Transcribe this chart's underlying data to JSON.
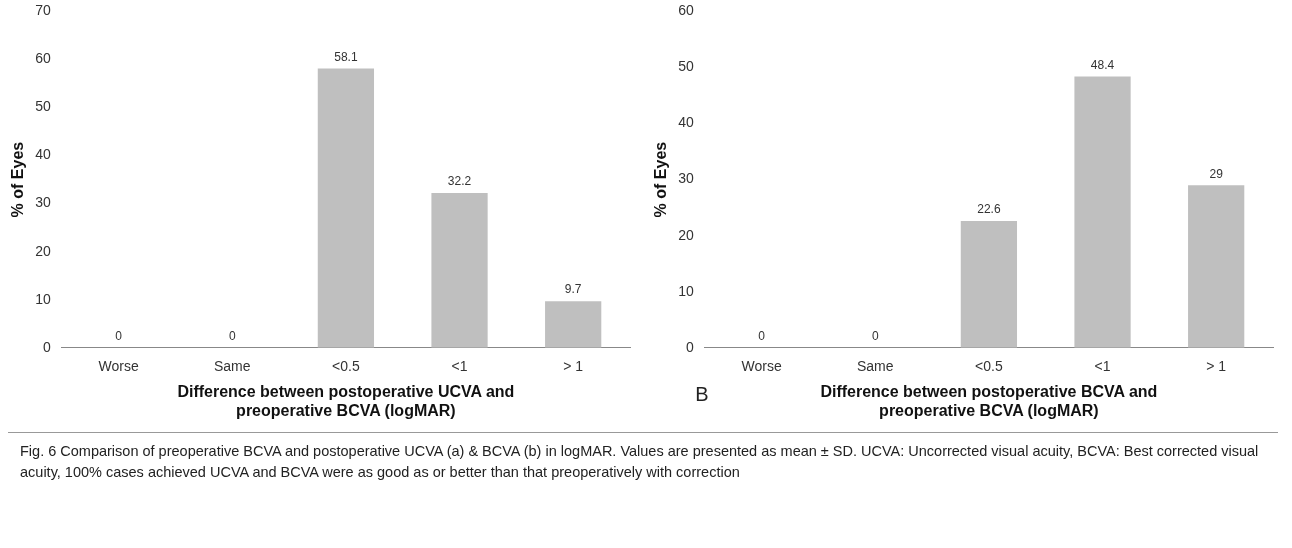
{
  "chart_data": [
    {
      "type": "bar",
      "categories": [
        "Worse",
        "Same",
        "<0.5",
        "<1",
        "> 1"
      ],
      "values": [
        0,
        0,
        58.1,
        32.2,
        9.7
      ],
      "color": "#bfbfbf",
      "ylim": [
        0,
        70
      ],
      "yticks": [
        0,
        10,
        20,
        30,
        40,
        50,
        60,
        70
      ],
      "grid": false,
      "data_labels": true,
      "ylabel": "% of Eyes",
      "xlabel": "Difference between postoperative UCVA and\npreoperative BCVA (logMAR)",
      "annotations": [
        "Fig. 6 Comparison of preoperative BCVA and postoperative UCVA (a) & BCVA (b) in logMAR. Values are presented as mean ± SD. UCVA: Uncorrected visual acuity, BCVA: Best corrected visual acuity, 100% cases achieved UCVA and BCVA were as good as or better than that preoperatively with correction"
      ]
    },
    {
      "type": "bar",
      "categories": [
        "Worse",
        "Same",
        "<0.5",
        "<1",
        "> 1"
      ],
      "values": [
        0,
        0,
        22.6,
        48.4,
        29
      ],
      "color": "#bfbfbf",
      "ylim": [
        0,
        60
      ],
      "yticks": [
        0,
        10,
        20,
        30,
        40,
        50,
        60
      ],
      "grid": false,
      "data_labels": true,
      "ylabel": "% of Eyes",
      "xlabel": "Difference between postoperative BCVA and\npreoperative BCVA (logMAR)",
      "annotations": [
        "B"
      ]
    }
  ]
}
